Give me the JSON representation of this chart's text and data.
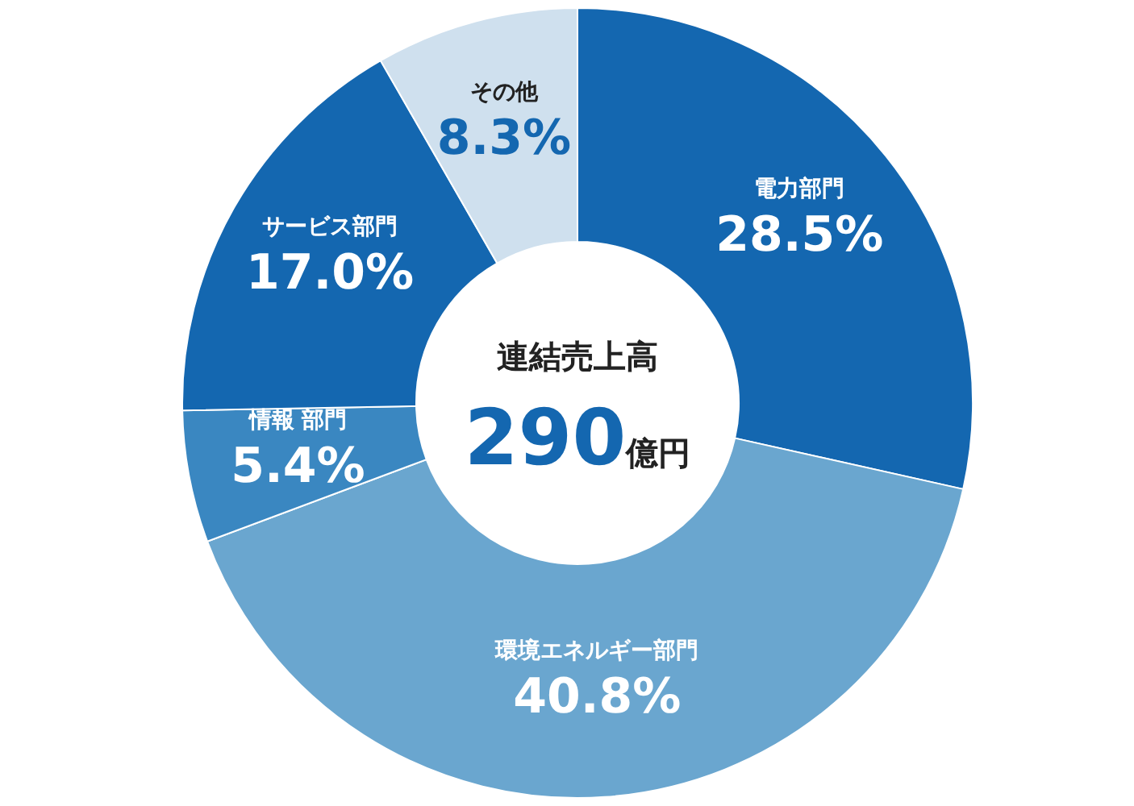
{
  "chart_data": {
    "type": "donut",
    "categories": [
      "電力部門",
      "環境エネルギー部門",
      "情報 部門",
      "サービス部門",
      "その他"
    ],
    "values": [
      28.5,
      40.8,
      5.4,
      17.0,
      8.3
    ],
    "value_labels": [
      "28.5%",
      "40.8%",
      "5.4%",
      "17.0%",
      "8.3%"
    ],
    "colors": [
      "#1467b0",
      "#6aa6cf",
      "#3a87c1",
      "#1467b0",
      "#cfe0ee"
    ],
    "title": "連結売上高",
    "annotations": [
      "290億円"
    ]
  }
}
